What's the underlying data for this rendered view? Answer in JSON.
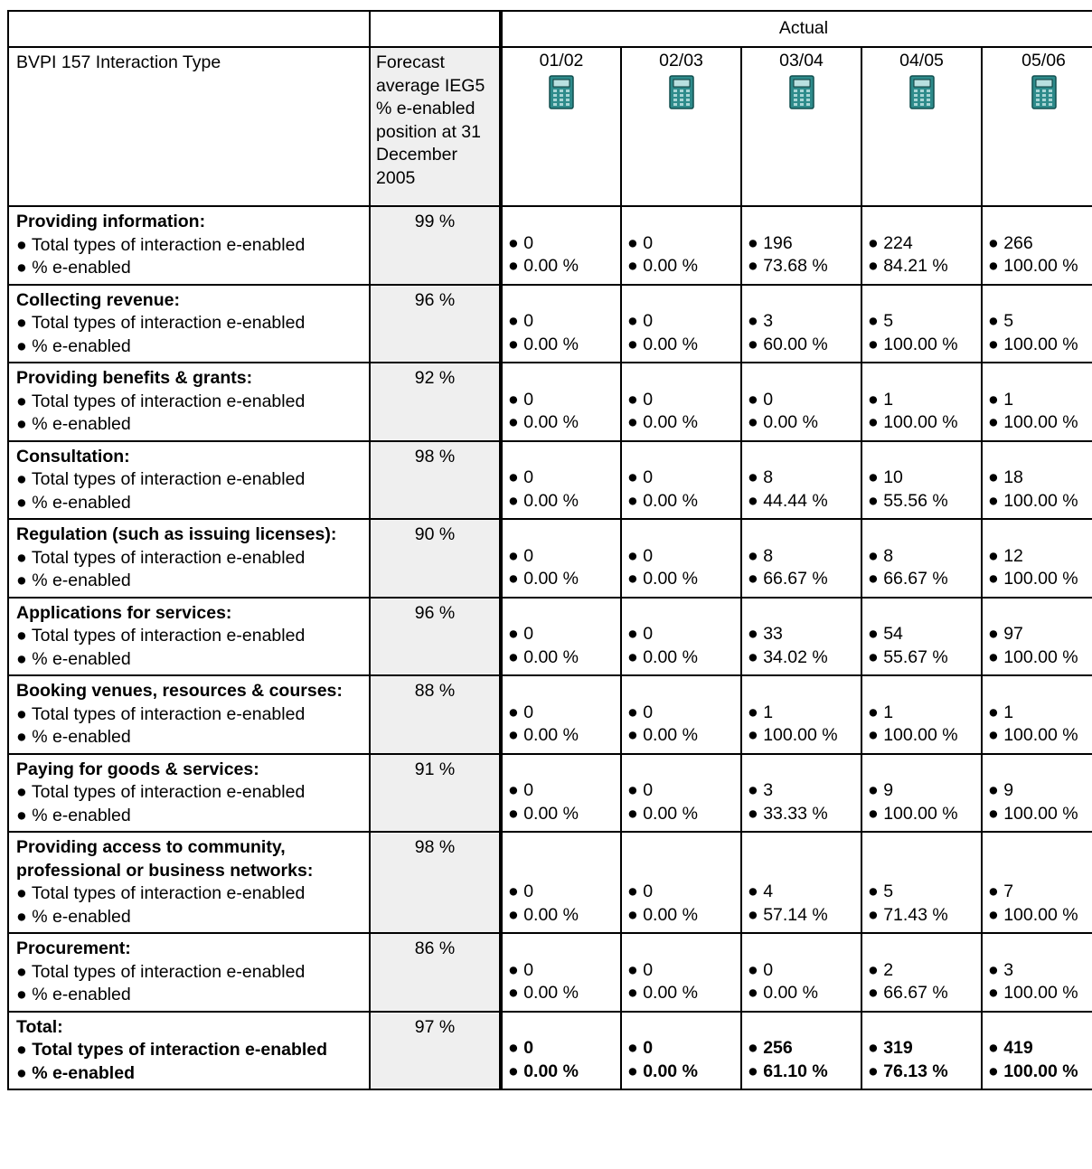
{
  "header": {
    "actual_label": "Actual",
    "type_col": "BVPI 157 Interaction Type",
    "forecast_col": "Forecast average IEG5 % e-enabled position at 31 December 2005",
    "years": [
      "01/02",
      "02/03",
      "03/04",
      "04/05",
      "05/06"
    ],
    "year_icon": "calculator-icon"
  },
  "sub_labels": {
    "total": "Total types of interaction e-enabled",
    "pct": "% e-enabled"
  },
  "rows": [
    {
      "title": "Providing information:",
      "forecast": "99 %",
      "totals": [
        "0",
        "0",
        "196",
        "224",
        "266"
      ],
      "pcts": [
        "0.00 %",
        "0.00 %",
        "73.68 %",
        "84.21 %",
        "100.00 %"
      ]
    },
    {
      "title": "Collecting revenue:",
      "forecast": "96 %",
      "totals": [
        "0",
        "0",
        "3",
        "5",
        "5"
      ],
      "pcts": [
        "0.00 %",
        "0.00 %",
        "60.00 %",
        "100.00 %",
        "100.00 %"
      ]
    },
    {
      "title": "Providing benefits & grants:",
      "forecast": "92 %",
      "totals": [
        "0",
        "0",
        "0",
        "1",
        "1"
      ],
      "pcts": [
        "0.00 %",
        "0.00 %",
        "0.00 %",
        "100.00 %",
        "100.00 %"
      ]
    },
    {
      "title": "Consultation:",
      "forecast": "98 %",
      "totals": [
        "0",
        "0",
        "8",
        "10",
        "18"
      ],
      "pcts": [
        "0.00 %",
        "0.00 %",
        "44.44 %",
        "55.56 %",
        "100.00 %"
      ]
    },
    {
      "title": "Regulation (such as issuing licenses):",
      "forecast": "90 %",
      "totals": [
        "0",
        "0",
        "8",
        "8",
        "12"
      ],
      "pcts": [
        "0.00 %",
        "0.00 %",
        "66.67 %",
        "66.67 %",
        "100.00 %"
      ]
    },
    {
      "title": "Applications for services:",
      "forecast": "96 %",
      "totals": [
        "0",
        "0",
        "33",
        "54",
        "97"
      ],
      "pcts": [
        "0.00 %",
        "0.00 %",
        "34.02 %",
        "55.67 %",
        "100.00 %"
      ]
    },
    {
      "title": "Booking venues, resources & courses:",
      "forecast": "88 %",
      "totals": [
        "0",
        "0",
        "1",
        "1",
        "1"
      ],
      "pcts": [
        "0.00 %",
        "0.00 %",
        "100.00 %",
        "100.00 %",
        "100.00 %"
      ]
    },
    {
      "title": "Paying for goods & services:",
      "forecast": "91 %",
      "totals": [
        "0",
        "0",
        "3",
        "9",
        "9"
      ],
      "pcts": [
        "0.00 %",
        "0.00 %",
        "33.33 %",
        "100.00 %",
        "100.00 %"
      ]
    },
    {
      "title": "Providing access to community, professional or business networks:",
      "forecast": "98 %",
      "totals": [
        "0",
        "0",
        "4",
        "5",
        "7"
      ],
      "pcts": [
        "0.00 %",
        "0.00 %",
        "57.14 %",
        "71.43 %",
        "100.00 %"
      ]
    },
    {
      "title": "Procurement:",
      "forecast": "86 %",
      "totals": [
        "0",
        "0",
        "0",
        "2",
        "3"
      ],
      "pcts": [
        "0.00 %",
        "0.00 %",
        "0.00 %",
        "66.67 %",
        "100.00 %"
      ]
    }
  ],
  "total_row": {
    "title": "Total:",
    "forecast": "97 %",
    "totals": [
      "0",
      "0",
      "256",
      "319",
      "419"
    ],
    "pcts": [
      "0.00 %",
      "0.00 %",
      "61.10 %",
      "76.13 %",
      "100.00 %"
    ]
  },
  "colors": {
    "forecast_bg": "#efefef",
    "calculator_body": "#2e8b8b",
    "calculator_screen": "#b8e0e0"
  }
}
